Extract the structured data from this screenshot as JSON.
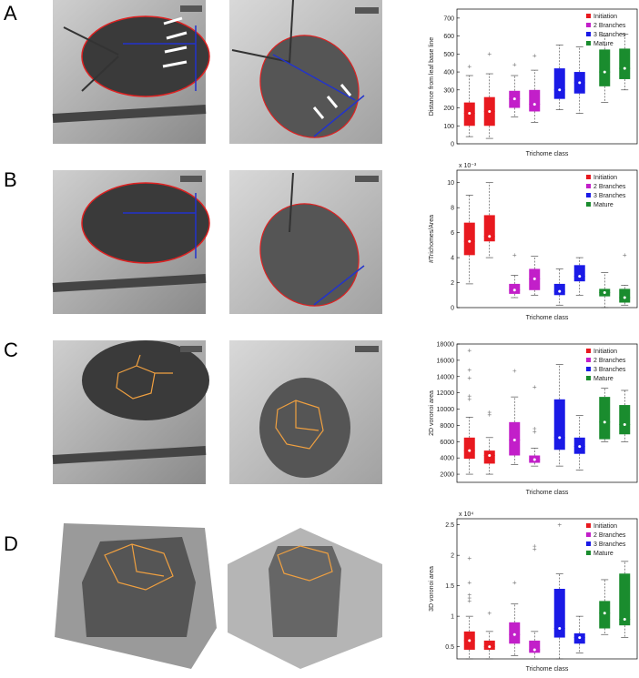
{
  "panel_labels": [
    "A",
    "B",
    "C",
    "D"
  ],
  "chart_data": [
    {
      "type": "box",
      "ylabel": "Distance from leaf base line",
      "xlabel": "Trichome class",
      "ylim": [
        0,
        750
      ],
      "yticks": [
        0,
        100,
        200,
        300,
        400,
        500,
        600,
        700
      ],
      "series": [
        {
          "name": "Initiation",
          "color": "#e8191f",
          "boxes": [
            {
              "whisker_low": 40,
              "q1": 100,
              "median": 170,
              "q3": 230,
              "whisker_high": 380,
              "outliers": [
                430
              ]
            },
            {
              "whisker_low": 30,
              "q1": 100,
              "median": 180,
              "q3": 260,
              "whisker_high": 390,
              "outliers": [
                500
              ]
            }
          ]
        },
        {
          "name": "2 Branches",
          "color": "#c21fc9",
          "boxes": [
            {
              "whisker_low": 150,
              "q1": 200,
              "median": 250,
              "q3": 295,
              "whisker_high": 380,
              "outliers": [
                440
              ]
            },
            {
              "whisker_low": 120,
              "q1": 180,
              "median": 220,
              "q3": 300,
              "whisker_high": 410,
              "outliers": [
                490
              ]
            }
          ]
        },
        {
          "name": "3 Branches",
          "color": "#1a1ae6",
          "boxes": [
            {
              "whisker_low": 190,
              "q1": 250,
              "median": 300,
              "q3": 420,
              "whisker_high": 550,
              "outliers": []
            },
            {
              "whisker_low": 170,
              "q1": 280,
              "median": 340,
              "q3": 400,
              "whisker_high": 540,
              "outliers": []
            }
          ]
        },
        {
          "name": "Mature",
          "color": "#1a8c2e",
          "boxes": [
            {
              "whisker_low": 230,
              "q1": 320,
              "median": 400,
              "q3": 525,
              "whisker_high": 600,
              "outliers": []
            },
            {
              "whisker_low": 300,
              "q1": 360,
              "median": 420,
              "q3": 530,
              "whisker_high": 610,
              "outliers": []
            }
          ]
        }
      ]
    },
    {
      "type": "box",
      "ylabel": "#Trichomes/Area",
      "xlabel": "Trichome class",
      "y_scale_label": "x 10⁻³",
      "ylim": [
        0,
        11
      ],
      "yticks": [
        0,
        2,
        4,
        6,
        8,
        10
      ],
      "series": [
        {
          "name": "Initiation",
          "color": "#e8191f",
          "boxes": [
            {
              "whisker_low": 1.9,
              "q1": 4.2,
              "median": 5.3,
              "q3": 6.8,
              "whisker_high": 9.0,
              "outliers": []
            },
            {
              "whisker_low": 4.0,
              "q1": 5.3,
              "median": 5.7,
              "q3": 7.4,
              "whisker_high": 10.0,
              "outliers": []
            }
          ]
        },
        {
          "name": "2 Branches",
          "color": "#c21fc9",
          "boxes": [
            {
              "whisker_low": 0.8,
              "q1": 1.1,
              "median": 1.4,
              "q3": 1.9,
              "whisker_high": 2.6,
              "outliers": [
                4.2
              ]
            },
            {
              "whisker_low": 1.0,
              "q1": 1.4,
              "median": 2.3,
              "q3": 3.1,
              "whisker_high": 4.1,
              "outliers": []
            }
          ]
        },
        {
          "name": "3 Branches",
          "color": "#1a1ae6",
          "boxes": [
            {
              "whisker_low": 0.2,
              "q1": 1.0,
              "median": 1.3,
              "q3": 1.9,
              "whisker_high": 3.1,
              "outliers": []
            },
            {
              "whisker_low": 1.0,
              "q1": 2.1,
              "median": 2.5,
              "q3": 3.4,
              "whisker_high": 4.0,
              "outliers": []
            }
          ]
        },
        {
          "name": "Mature",
          "color": "#1a8c2e",
          "boxes": [
            {
              "whisker_low": 0,
              "q1": 0.9,
              "median": 1.2,
              "q3": 1.5,
              "whisker_high": 2.8,
              "outliers": []
            },
            {
              "whisker_low": 0.2,
              "q1": 0.4,
              "median": 0.8,
              "q3": 1.5,
              "whisker_high": 1.8,
              "outliers": [
                4.2
              ]
            }
          ]
        }
      ]
    },
    {
      "type": "box",
      "ylabel": "2D voronoi area",
      "xlabel": "Trichome class",
      "ylim": [
        1000,
        18000
      ],
      "yticks": [
        2000,
        4000,
        6000,
        8000,
        10000,
        12000,
        14000,
        16000,
        18000
      ],
      "series": [
        {
          "name": "Initiation",
          "color": "#e8191f",
          "boxes": [
            {
              "whisker_low": 2000,
              "q1": 3900,
              "median": 4900,
              "q3": 6500,
              "whisker_high": 9000,
              "outliers": [
                11200,
                11600,
                13800,
                14800,
                17200
              ]
            },
            {
              "whisker_low": 2000,
              "q1": 3300,
              "median": 4300,
              "q3": 4900,
              "whisker_high": 6500,
              "outliers": [
                9300,
                9600
              ]
            }
          ]
        },
        {
          "name": "2 Branches",
          "color": "#c21fc9",
          "boxes": [
            {
              "whisker_low": 3200,
              "q1": 4300,
              "median": 6200,
              "q3": 8400,
              "whisker_high": 11500,
              "outliers": [
                14700
              ]
            },
            {
              "whisker_low": 3000,
              "q1": 3400,
              "median": 3800,
              "q3": 4300,
              "whisker_high": 5200,
              "outliers": [
                7200,
                7600,
                12700
              ]
            }
          ]
        },
        {
          "name": "3 Branches",
          "color": "#1a1ae6",
          "boxes": [
            {
              "whisker_low": 3000,
              "q1": 5000,
              "median": 6500,
              "q3": 11200,
              "whisker_high": 15500,
              "outliers": []
            },
            {
              "whisker_low": 2500,
              "q1": 4500,
              "median": 5400,
              "q3": 6500,
              "whisker_high": 9200,
              "outliers": []
            }
          ]
        },
        {
          "name": "Mature",
          "color": "#1a8c2e",
          "boxes": [
            {
              "whisker_low": 6000,
              "q1": 6300,
              "median": 8400,
              "q3": 11500,
              "whisker_high": 12600,
              "outliers": []
            },
            {
              "whisker_low": 6000,
              "q1": 6900,
              "median": 8100,
              "q3": 10500,
              "whisker_high": 12300,
              "outliers": []
            }
          ]
        }
      ]
    },
    {
      "type": "box",
      "ylabel": "3D voronoi area",
      "xlabel": "Trichome class",
      "y_scale_label": "x 10⁴",
      "ylim": [
        0.3,
        2.6
      ],
      "yticks": [
        0.5,
        1,
        1.5,
        2,
        2.5
      ],
      "series": [
        {
          "name": "Initiation",
          "color": "#e8191f",
          "boxes": [
            {
              "whisker_low": 0.3,
              "q1": 0.45,
              "median": 0.6,
              "q3": 0.75,
              "whisker_high": 1.0,
              "outliers": [
                1.25,
                1.3,
                1.35,
                1.55,
                1.95
              ]
            },
            {
              "whisker_low": 0.3,
              "q1": 0.45,
              "median": 0.5,
              "q3": 0.6,
              "whisker_high": 0.75,
              "outliers": [
                1.05
              ]
            }
          ]
        },
        {
          "name": "2 Branches",
          "color": "#c21fc9",
          "boxes": [
            {
              "whisker_low": 0.35,
              "q1": 0.55,
              "median": 0.7,
              "q3": 0.9,
              "whisker_high": 1.2,
              "outliers": [
                1.55
              ]
            },
            {
              "whisker_low": 0.3,
              "q1": 0.4,
              "median": 0.45,
              "q3": 0.6,
              "whisker_high": 0.75,
              "outliers": [
                2.1,
                2.15
              ]
            }
          ]
        },
        {
          "name": "3 Branches",
          "color": "#1a1ae6",
          "boxes": [
            {
              "whisker_low": 0.3,
              "q1": 0.65,
              "median": 0.8,
              "q3": 1.45,
              "whisker_high": 1.7,
              "outliers": [
                2.5
              ]
            },
            {
              "whisker_low": 0.4,
              "q1": 0.55,
              "median": 0.65,
              "q3": 0.72,
              "whisker_high": 1.0,
              "outliers": []
            }
          ]
        },
        {
          "name": "Mature",
          "color": "#1a8c2e",
          "boxes": [
            {
              "whisker_low": 0.7,
              "q1": 0.8,
              "median": 1.05,
              "q3": 1.25,
              "whisker_high": 1.6,
              "outliers": []
            },
            {
              "whisker_low": 0.65,
              "q1": 0.85,
              "median": 0.95,
              "q3": 1.7,
              "whisker_high": 1.9,
              "outliers": []
            }
          ]
        }
      ]
    }
  ]
}
